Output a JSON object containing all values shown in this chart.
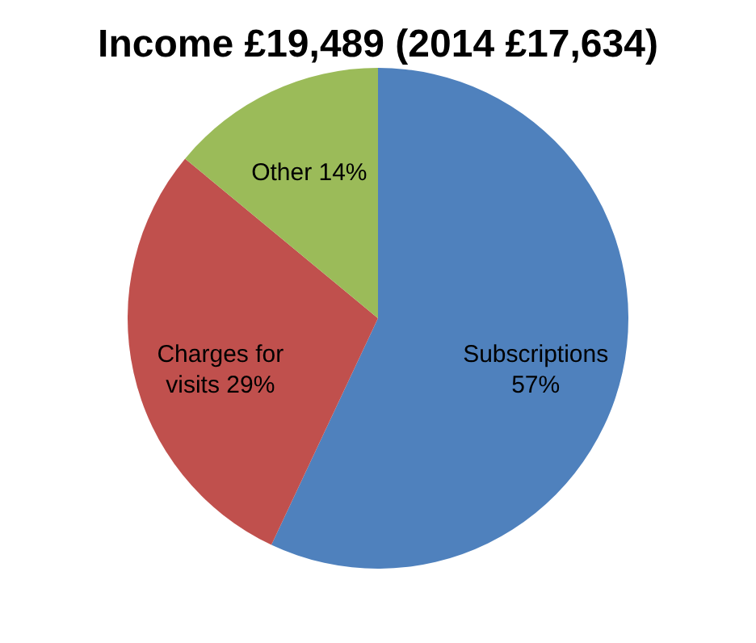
{
  "chart_data": {
    "type": "pie",
    "title": "Income £19,489 (2014 £17,634)",
    "categories": [
      "Subscriptions",
      "Charges for visits",
      "Other"
    ],
    "values": [
      57,
      29,
      14
    ],
    "value_labels": [
      "57%",
      "29%",
      "14%"
    ],
    "colors": [
      "#4f81bd",
      "#c0504d",
      "#9bbb59"
    ],
    "legend": false
  }
}
